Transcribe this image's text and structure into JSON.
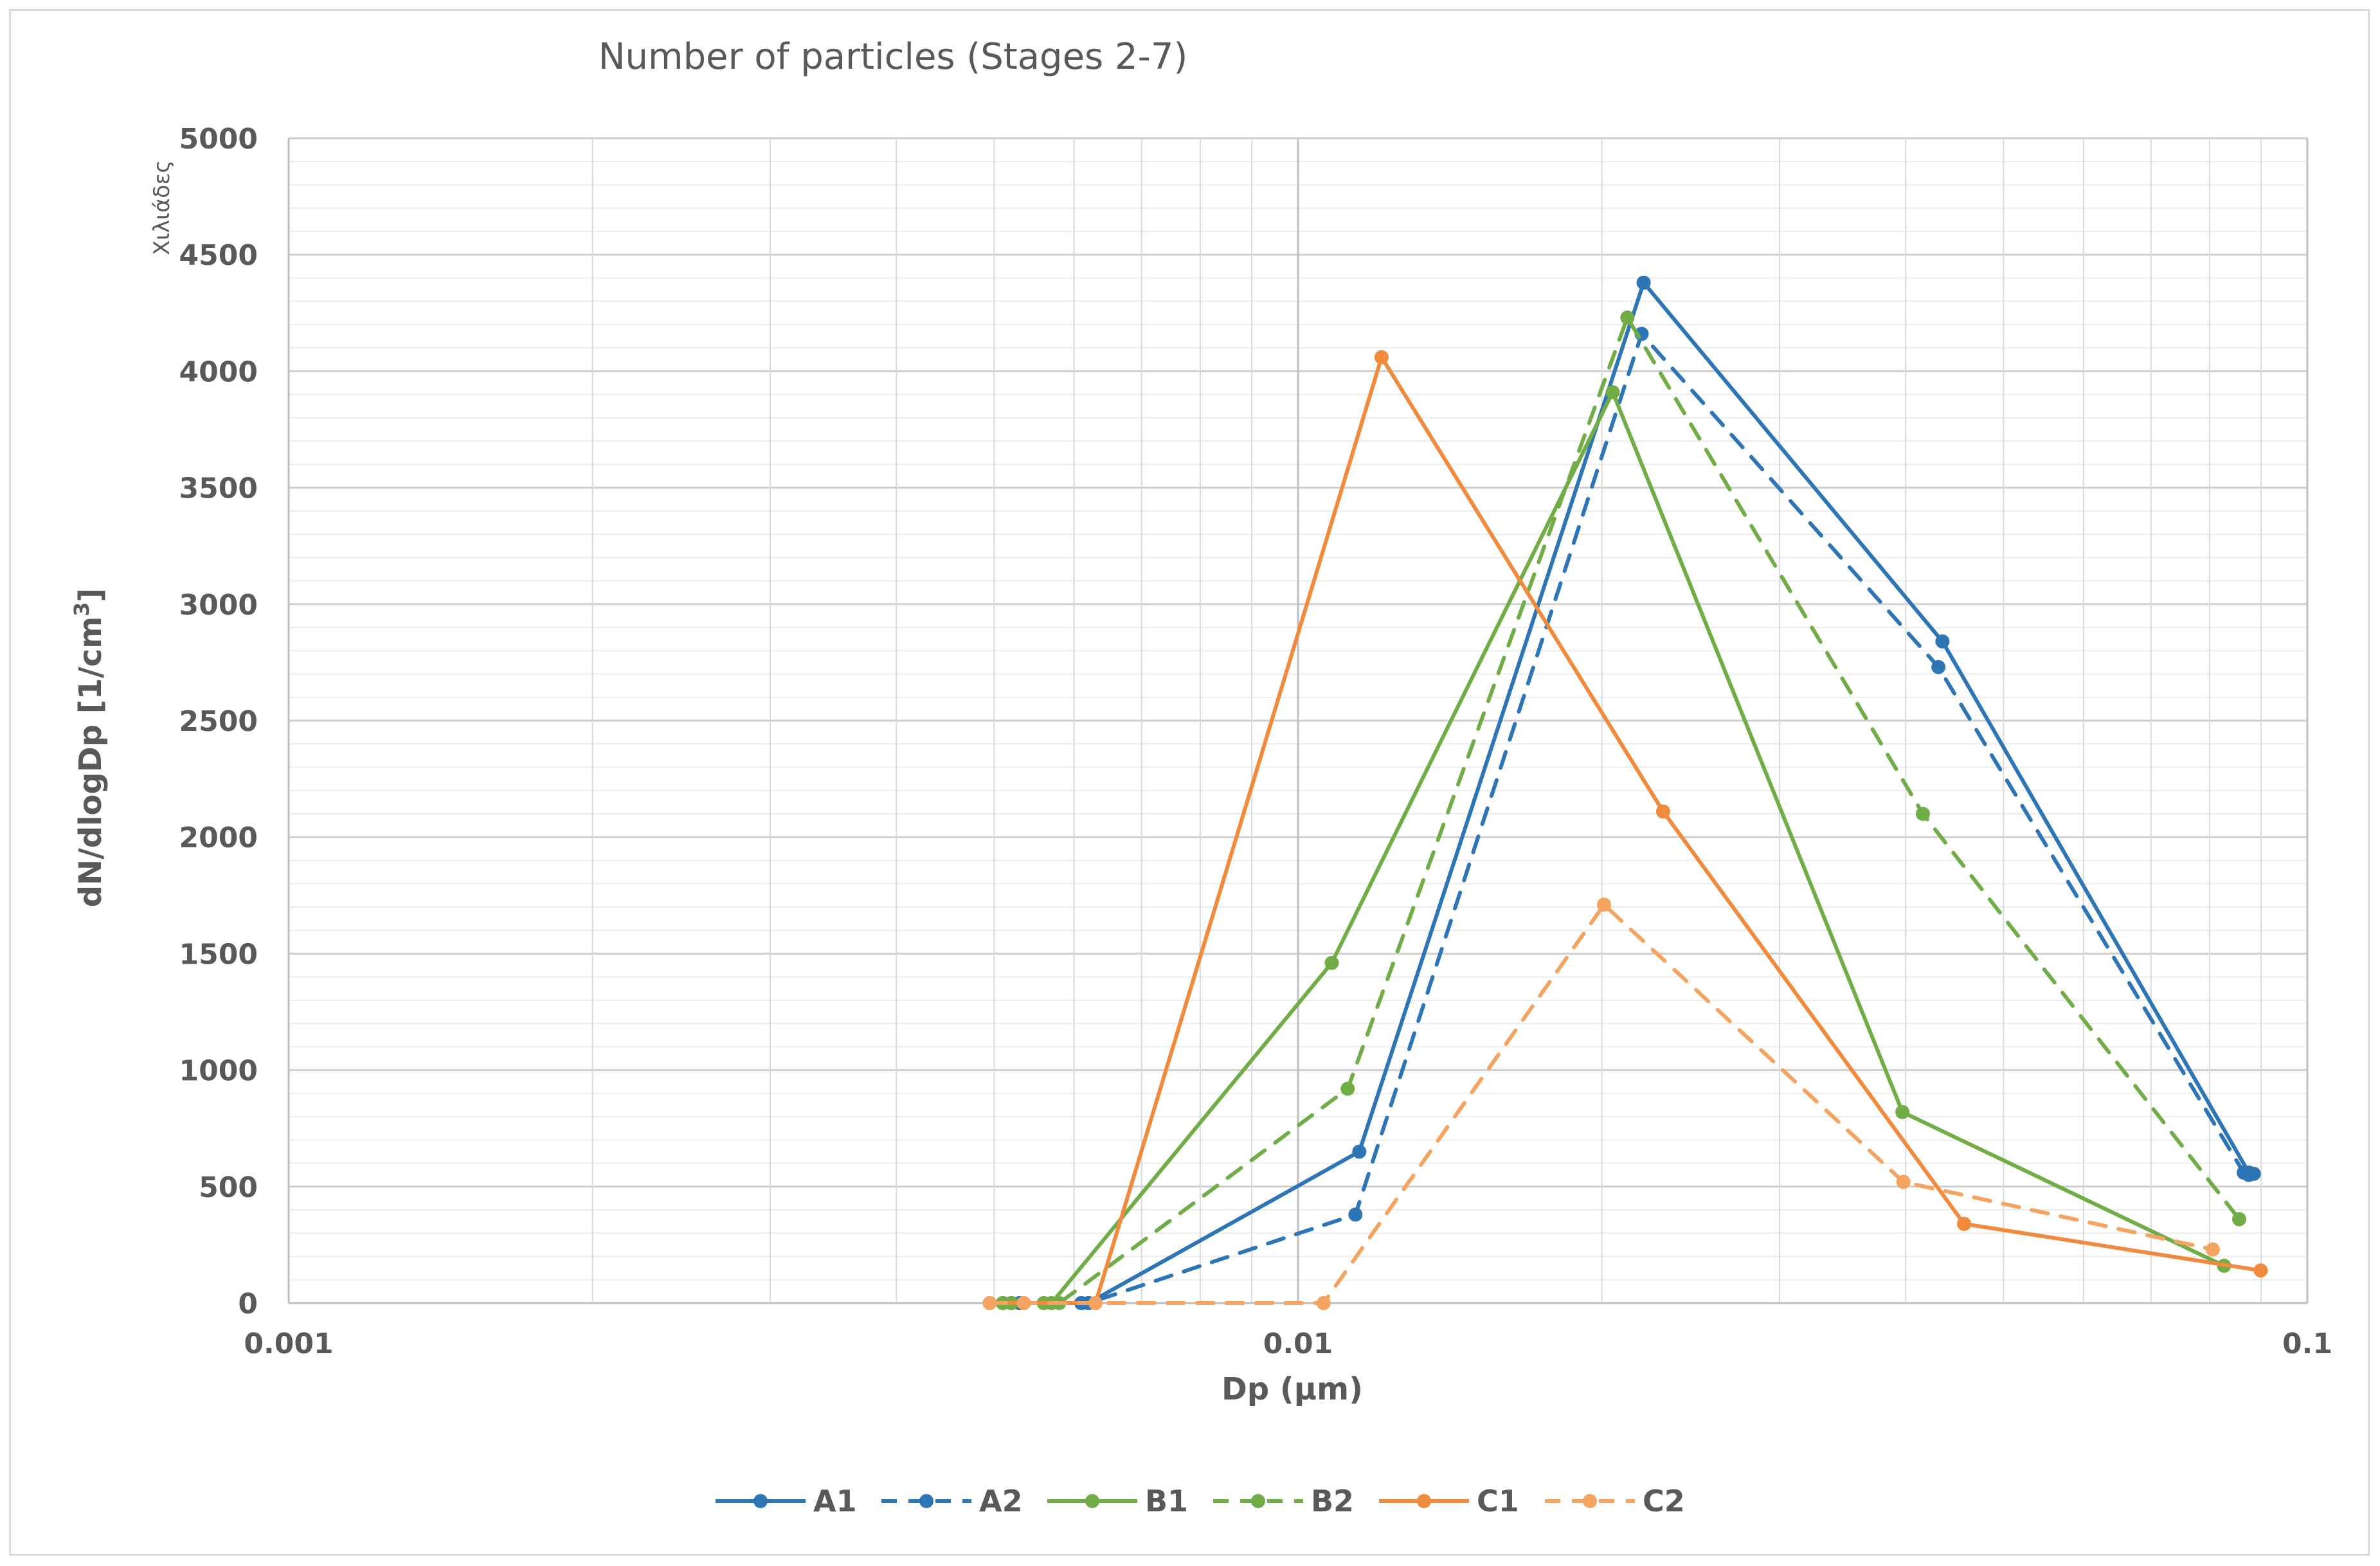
{
  "chart_data": {
    "type": "line",
    "title": "Number of particles (Stages 2-7)",
    "xlabel": "Dp (μm)",
    "ylabel_main": "dN/dlogDp [1/cm",
    "ylabel_sup": "3",
    "ylabel_close": "]",
    "y_unit_note": "Χιλιάδες",
    "x_scale": "log",
    "xlim": [
      0.001,
      0.1
    ],
    "ylim": [
      0,
      5000
    ],
    "x_ticks": [
      {
        "value": 0.001,
        "label": "0.001"
      },
      {
        "value": 0.01,
        "label": "0.01"
      },
      {
        "value": 0.1,
        "label": "0.1"
      }
    ],
    "y_ticks": [
      {
        "value": 0,
        "label": "0"
      },
      {
        "value": 500,
        "label": "500"
      },
      {
        "value": 1000,
        "label": "1000"
      },
      {
        "value": 1500,
        "label": "1500"
      },
      {
        "value": 2000,
        "label": "2000"
      },
      {
        "value": 2500,
        "label": "2500"
      },
      {
        "value": 3000,
        "label": "3000"
      },
      {
        "value": 3500,
        "label": "3500"
      },
      {
        "value": 4000,
        "label": "4000"
      },
      {
        "value": 4500,
        "label": "4500"
      },
      {
        "value": 5000,
        "label": "5000"
      }
    ],
    "grid": true,
    "legend_position": "bottom",
    "series": [
      {
        "name": "A1",
        "color": "#2e75b6",
        "dashed": false,
        "points": [
          [
            0.0052,
            0
          ],
          [
            0.0053,
            0
          ],
          [
            0.0061,
            0
          ],
          [
            0.0062,
            0
          ],
          [
            0.0115,
            650
          ],
          [
            0.022,
            4380
          ],
          [
            0.0435,
            2840
          ],
          [
            0.0875,
            560
          ],
          [
            0.0885,
            555
          ]
        ]
      },
      {
        "name": "A2",
        "color": "#2e75b6",
        "dashed": true,
        "points": [
          [
            0.0052,
            0
          ],
          [
            0.0053,
            0
          ],
          [
            0.0061,
            0
          ],
          [
            0.0062,
            0
          ],
          [
            0.0114,
            380
          ],
          [
            0.0219,
            4160
          ],
          [
            0.0431,
            2730
          ],
          [
            0.0865,
            560
          ],
          [
            0.0875,
            550
          ]
        ]
      },
      {
        "name": "B1",
        "color": "#70ad47",
        "dashed": false,
        "points": [
          [
            0.0051,
            0
          ],
          [
            0.0052,
            0
          ],
          [
            0.0056,
            0
          ],
          [
            0.0057,
            0
          ],
          [
            0.0108,
            1460
          ],
          [
            0.0205,
            3910
          ],
          [
            0.0397,
            820
          ],
          [
            0.0827,
            160
          ]
        ]
      },
      {
        "name": "B2",
        "color": "#70ad47",
        "dashed": true,
        "points": [
          [
            0.0051,
            0
          ],
          [
            0.0052,
            0
          ],
          [
            0.0056,
            0
          ],
          [
            0.0058,
            0
          ],
          [
            0.0112,
            920
          ],
          [
            0.0212,
            4230
          ],
          [
            0.0416,
            2100
          ],
          [
            0.0856,
            360
          ]
        ]
      },
      {
        "name": "C1",
        "color": "#f08a3c",
        "dashed": false,
        "points": [
          [
            0.00495,
            0
          ],
          [
            0.00535,
            0
          ],
          [
            0.0063,
            0
          ],
          [
            0.0121,
            4060
          ],
          [
            0.023,
            2110
          ],
          [
            0.0457,
            340
          ],
          [
            0.0899,
            140
          ]
        ]
      },
      {
        "name": "C2",
        "color": "#f4a460",
        "dashed": true,
        "points": [
          [
            0.00495,
            0
          ],
          [
            0.00535,
            0
          ],
          [
            0.0063,
            0
          ],
          [
            0.0106,
            0
          ],
          [
            0.0201,
            1710
          ],
          [
            0.0398,
            520
          ],
          [
            0.0806,
            230
          ]
        ]
      }
    ]
  }
}
